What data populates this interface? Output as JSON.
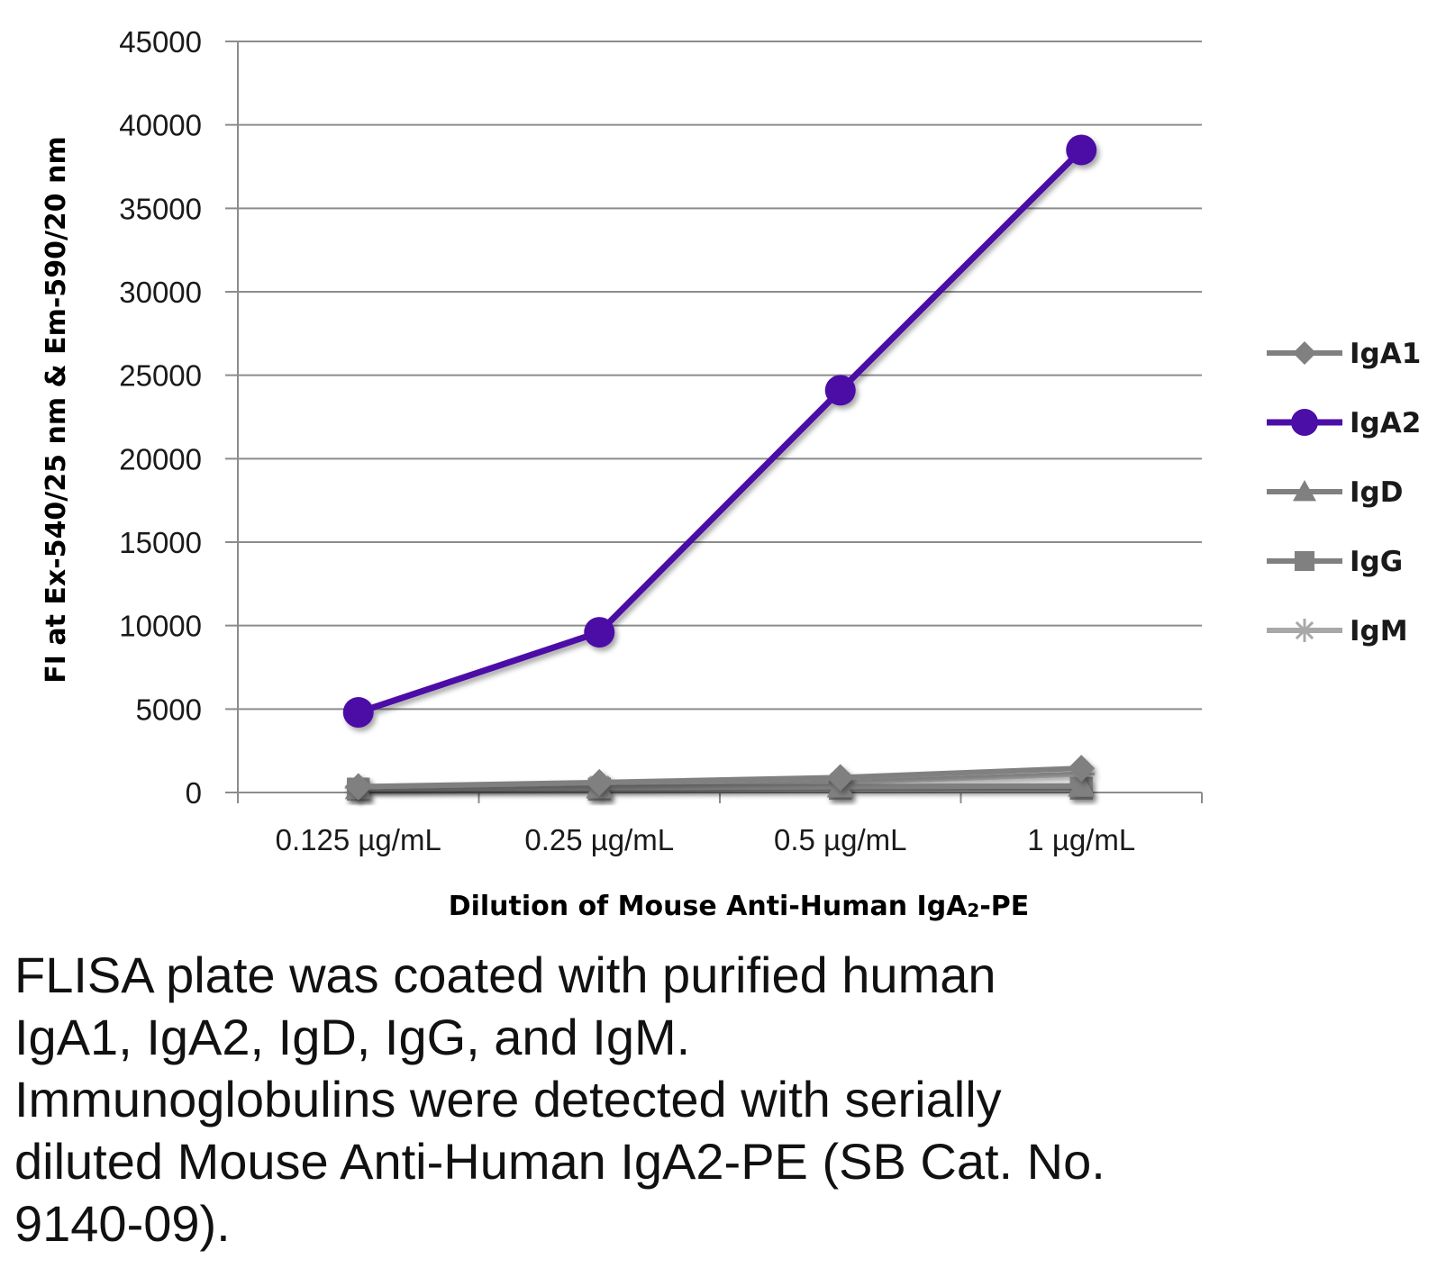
{
  "chart_data": {
    "type": "line",
    "categories": [
      "0.125 µg/mL",
      "0.25 µg/mL",
      "0.5 µg/mL",
      "1 µg/mL"
    ],
    "ylim": [
      0,
      45000
    ],
    "yticks": [
      0,
      5000,
      10000,
      15000,
      20000,
      25000,
      30000,
      35000,
      40000,
      45000
    ],
    "ylabel": "FI at Ex-540/25 nm & Em-590/20 nm",
    "xlabel": {
      "main": "Dilution of Mouse Anti-Human IgA",
      "sub": "2",
      "tail": "-PE"
    },
    "grid": true,
    "legend_position": "right",
    "series": [
      {
        "name": "IgA1",
        "marker": "diamond",
        "color": "#808080",
        "values": [
          350,
          600,
          900,
          1450
        ]
      },
      {
        "name": "IgA2",
        "marker": "circle",
        "color": "#4b0ea6",
        "values": [
          4800,
          9600,
          24100,
          38500
        ]
      },
      {
        "name": "IgD",
        "marker": "triangle",
        "color": "#808080",
        "values": [
          250,
          300,
          350,
          400
        ]
      },
      {
        "name": "IgG",
        "marker": "square",
        "color": "#808080",
        "values": [
          200,
          200,
          250,
          250
        ]
      },
      {
        "name": "IgM",
        "marker": "star",
        "color": "#a8a8a8",
        "values": [
          300,
          400,
          600,
          1100
        ]
      }
    ]
  },
  "caption": {
    "lines": [
      "FLISA plate was coated with purified human",
      "IgA1, IgA2, IgD, IgG, and IgM.",
      "Immunoglobulins were detected with serially",
      "diluted Mouse Anti-Human IgA2-PE (SB Cat. No.",
      "9140-09)."
    ]
  }
}
